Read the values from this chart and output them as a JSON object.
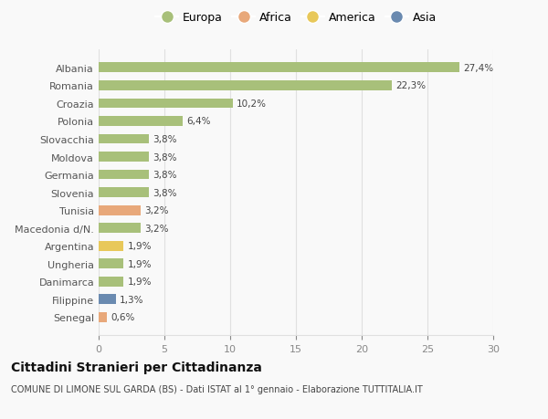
{
  "countries": [
    "Albania",
    "Romania",
    "Croazia",
    "Polonia",
    "Slovacchia",
    "Moldova",
    "Germania",
    "Slovenia",
    "Tunisia",
    "Macedonia d/N.",
    "Argentina",
    "Ungheria",
    "Danimarca",
    "Filippine",
    "Senegal"
  ],
  "values": [
    27.4,
    22.3,
    10.2,
    6.4,
    3.8,
    3.8,
    3.8,
    3.8,
    3.2,
    3.2,
    1.9,
    1.9,
    1.9,
    1.3,
    0.6
  ],
  "labels": [
    "27,4%",
    "22,3%",
    "10,2%",
    "6,4%",
    "3,8%",
    "3,8%",
    "3,8%",
    "3,8%",
    "3,2%",
    "3,2%",
    "1,9%",
    "1,9%",
    "1,9%",
    "1,3%",
    "0,6%"
  ],
  "categories": [
    "Europa",
    "Africa",
    "America",
    "Asia"
  ],
  "bar_colors": [
    "#a8c07a",
    "#a8c07a",
    "#a8c07a",
    "#a8c07a",
    "#a8c07a",
    "#a8c07a",
    "#a8c07a",
    "#a8c07a",
    "#e8a87a",
    "#a8c07a",
    "#e8c85a",
    "#a8c07a",
    "#a8c07a",
    "#6a8ab0",
    "#e8a87a"
  ],
  "legend_colors": [
    "#a8c07a",
    "#e8a87a",
    "#e8c85a",
    "#6a8ab0"
  ],
  "title": "Cittadini Stranieri per Cittadinanza",
  "subtitle": "COMUNE DI LIMONE SUL GARDA (BS) - Dati ISTAT al 1° gennaio - Elaborazione TUTTITALIA.IT",
  "xlim": [
    0,
    30
  ],
  "xticks": [
    0,
    5,
    10,
    15,
    20,
    25,
    30
  ],
  "bg_color": "#f9f9f9",
  "grid_color": "#e0e0e0",
  "bar_height": 0.55
}
